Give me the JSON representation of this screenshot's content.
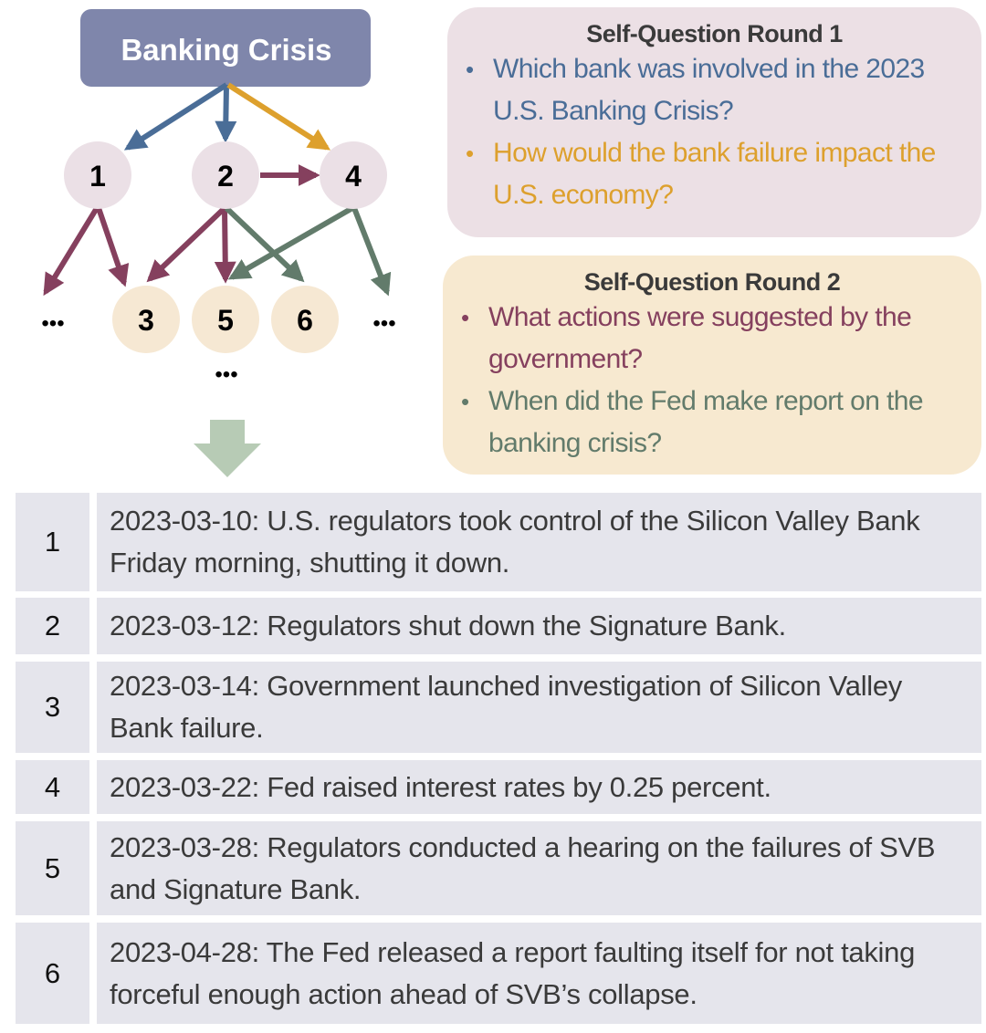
{
  "root": {
    "label": "Banking Crisis",
    "color": "#7f86ab"
  },
  "nodes": [
    {
      "id": "1",
      "round": 1
    },
    {
      "id": "2",
      "round": 1
    },
    {
      "id": "4",
      "round": 1
    },
    {
      "id": "3",
      "round": 2
    },
    {
      "id": "5",
      "round": 2
    },
    {
      "id": "6",
      "round": 2
    }
  ],
  "ellipsis": "•••",
  "colors": {
    "round1_node": "#ebe0e6",
    "round2_node": "#f6e8d3",
    "blue": "#4a6d97",
    "orange": "#dda02d",
    "maroon": "#85405e",
    "green": "#627b6b",
    "down_arrow": "#b7cbb5"
  },
  "round1": {
    "title": "Self-Question Round 1",
    "questions": [
      {
        "text": "Which bank was involved in the 2023 U.S. Banking Crisis?",
        "color": "#4a6d97"
      },
      {
        "text": "How would the bank failure impact the U.S. economy?",
        "color": "#dda02d"
      }
    ]
  },
  "round2": {
    "title": "Self-Question Round 2",
    "questions": [
      {
        "text": "What actions were suggested by the government?",
        "color": "#85405e"
      },
      {
        "text": "When did the Fed make report on the banking crisis?",
        "color": "#627b6b"
      }
    ]
  },
  "timeline": [
    {
      "num": "1",
      "text": "2023-03-10: U.S. regulators took control of the Silicon Valley Bank Friday morning, shutting it down."
    },
    {
      "num": "2",
      "text": "2023-03-12: Regulators shut down the Signature Bank."
    },
    {
      "num": "3",
      "text": "2023-03-14: Government launched investigation of Silicon Valley Bank failure."
    },
    {
      "num": "4",
      "text": "2023-03-22: Fed raised interest rates by 0.25 percent."
    },
    {
      "num": "5",
      "text": "2023-03-28: Regulators conducted a hearing on the failures of SVB and Signature Bank."
    },
    {
      "num": "6",
      "text": "2023-04-28: The Fed released a report faulting itself for not taking forceful enough action ahead of SVB’s collapse."
    }
  ]
}
